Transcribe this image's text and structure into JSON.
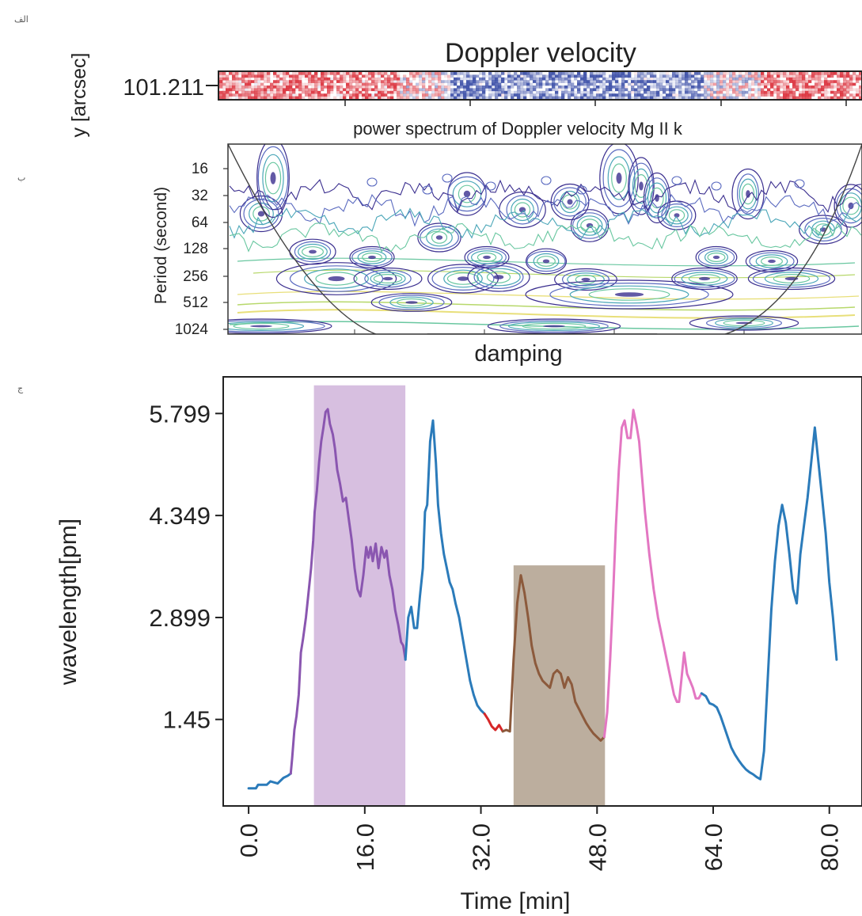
{
  "panels": {
    "a": {
      "letter": "الف",
      "title": "Doppler velocity",
      "ylabel": "y [arcsec]",
      "ytick": "101.211"
    },
    "b": {
      "letter": "ب",
      "title": "power spectrum of Doppler velocity Mg II k",
      "ylabel": "Period (second)",
      "yticks": [
        "16",
        "32",
        "64",
        "128",
        "256",
        "512",
        "1024"
      ],
      "caption": "damping",
      "contour_colors": [
        "#3b2f8f",
        "#5b6bc0",
        "#4aa6b8",
        "#69c7a0",
        "#b7d86b",
        "#e8df7a"
      ]
    },
    "c": {
      "letter": "ج"
    }
  },
  "chart_data": [
    {
      "type": "heatmap",
      "title": "Doppler velocity",
      "ylabel": "y [arcsec]",
      "yticks": [
        "101.211"
      ],
      "colors": {
        "positive": "#d8202c",
        "negative": "#2a3fa0"
      }
    },
    {
      "type": "heatmap",
      "title": "power spectrum of Doppler velocity Mg II k",
      "ylabel": "Period (second)",
      "yticks": [
        "16",
        "32",
        "64",
        "128",
        "256",
        "512",
        "1024"
      ],
      "xlabel": "damping"
    },
    {
      "type": "line",
      "xlabel": "Time [min]",
      "ylabel": "wavelength[pm]",
      "xticks": [
        "0.0",
        "16.0",
        "32.0",
        "48.0",
        "64.0",
        "80.0"
      ],
      "yticks": [
        "5.799",
        "4.349",
        "2.899",
        "1.45"
      ],
      "xlim": [
        -3.5,
        84.5
      ],
      "ylim": [
        0.22,
        6.32
      ],
      "grid": false,
      "shaded_regions": [
        {
          "x": [
            9.0,
            21.6
          ],
          "y": [
            0.22,
            6.2
          ],
          "color": "#d7bfe0"
        },
        {
          "x": [
            36.5,
            49.1
          ],
          "y": [
            0.22,
            3.64
          ],
          "color": "#bcae9e"
        }
      ],
      "series": [
        {
          "color": "#2b7bba",
          "x": [
            0.0,
            1.0,
            1.3,
            2.5,
            3.0,
            4.0,
            4.8,
            5.4,
            5.8
          ],
          "y": [
            0.47,
            0.47,
            0.52,
            0.52,
            0.57,
            0.54,
            0.62,
            0.65,
            0.68
          ]
        },
        {
          "color": "#8a56b0",
          "x": [
            5.8,
            6.0,
            6.3,
            6.6,
            6.9,
            7.2,
            7.5,
            7.9,
            8.2,
            8.6,
            8.9,
            9.1,
            9.4,
            9.7,
            10.0,
            10.3,
            10.6,
            10.9,
            11.2,
            11.4,
            11.6,
            11.9,
            12.2,
            12.6,
            13.0,
            13.4,
            13.8,
            14.2,
            14.6,
            15.0,
            15.4,
            15.8,
            16.2,
            16.5,
            16.8,
            17.1,
            17.5,
            17.9,
            18.3,
            18.7,
            19.0,
            19.4,
            19.8,
            20.2,
            20.6,
            21.0,
            21.3,
            21.6
          ],
          "y": [
            0.68,
            0.9,
            1.3,
            1.5,
            1.8,
            2.4,
            2.6,
            2.9,
            3.2,
            3.6,
            4.0,
            4.4,
            4.7,
            5.1,
            5.4,
            5.6,
            5.82,
            5.86,
            5.65,
            5.58,
            5.5,
            5.3,
            5.0,
            4.8,
            4.55,
            4.6,
            4.3,
            4.0,
            3.6,
            3.3,
            3.2,
            3.5,
            3.9,
            3.75,
            3.9,
            3.7,
            3.95,
            3.6,
            3.9,
            3.75,
            3.85,
            3.5,
            3.3,
            3.0,
            2.8,
            2.55,
            2.5,
            2.3
          ]
        },
        {
          "color": "#2b7bba",
          "x": [
            21.6,
            22.0,
            22.4,
            22.8,
            23.2,
            23.6,
            24.0,
            24.3,
            24.6,
            25.0,
            25.4,
            25.8,
            26.1,
            26.5,
            26.9,
            27.3,
            27.7,
            28.1,
            28.5,
            29.0,
            29.5,
            30.0,
            30.5,
            31.0,
            31.5,
            32.0,
            32.5
          ],
          "y": [
            2.3,
            2.9,
            3.05,
            2.75,
            2.75,
            3.2,
            3.6,
            4.4,
            4.5,
            5.4,
            5.7,
            5.1,
            4.5,
            4.1,
            3.8,
            3.6,
            3.4,
            3.3,
            3.1,
            2.9,
            2.6,
            2.3,
            2.0,
            1.8,
            1.65,
            1.58,
            1.53
          ]
        },
        {
          "color": "#d62728",
          "x": [
            32.5,
            33.0,
            33.5,
            34.0,
            34.5,
            35.0
          ],
          "y": [
            1.53,
            1.45,
            1.35,
            1.3,
            1.37,
            1.28
          ]
        },
        {
          "color": "#8c5a3c",
          "x": [
            35.0,
            35.5,
            36.0,
            36.5,
            37.0,
            37.5,
            38.0,
            38.5,
            39.0,
            39.5,
            40.0,
            40.5,
            41.0,
            41.5,
            42.0,
            42.5,
            43.0,
            43.5,
            44.0,
            44.5,
            45.0,
            45.5,
            46.0,
            46.5,
            47.0,
            47.5,
            48.0,
            48.5,
            49.0
          ],
          "y": [
            1.28,
            1.3,
            1.28,
            2.3,
            3.1,
            3.5,
            3.25,
            2.9,
            2.5,
            2.25,
            2.1,
            2.0,
            1.95,
            1.9,
            2.1,
            2.15,
            2.1,
            1.9,
            2.05,
            1.95,
            1.7,
            1.6,
            1.5,
            1.4,
            1.32,
            1.25,
            1.2,
            1.15,
            1.2
          ]
        },
        {
          "color": "#e377c2",
          "x": [
            49.0,
            49.4,
            49.8,
            50.2,
            50.6,
            51.0,
            51.4,
            51.8,
            52.2,
            52.6,
            53.0,
            53.4,
            53.8,
            54.2,
            54.6,
            55.2,
            55.8,
            56.4,
            57.0,
            57.6,
            58.2,
            58.6,
            59.0,
            59.3,
            59.6,
            60.0,
            60.4,
            60.8,
            61.2,
            61.6,
            62.0,
            62.4
          ],
          "y": [
            1.2,
            1.55,
            2.3,
            3.2,
            4.2,
            5.0,
            5.6,
            5.7,
            5.45,
            5.45,
            5.85,
            5.65,
            5.4,
            4.9,
            4.4,
            3.8,
            3.3,
            2.9,
            2.6,
            2.3,
            2.0,
            1.8,
            1.7,
            1.7,
            2.0,
            2.4,
            2.1,
            2.0,
            1.9,
            1.75,
            1.75,
            1.82
          ]
        },
        {
          "color": "#2b7bba",
          "x": [
            62.4,
            63.0,
            63.5,
            64.0,
            64.5,
            65.0,
            65.5,
            66.0,
            66.5,
            67.0,
            67.5,
            68.0,
            68.5,
            69.0,
            69.5,
            70.0,
            70.5,
            71.0,
            71.5,
            72.0,
            72.5,
            73.0,
            73.5,
            74.0,
            74.5,
            75.0,
            75.5,
            76.0,
            76.5,
            77.0,
            77.5,
            78.0,
            78.5,
            79.0,
            79.5,
            80.0,
            80.5,
            81.0
          ],
          "y": [
            1.82,
            1.78,
            1.68,
            1.66,
            1.62,
            1.5,
            1.35,
            1.2,
            1.05,
            0.95,
            0.87,
            0.8,
            0.74,
            0.7,
            0.67,
            0.63,
            0.6,
            1.0,
            2.0,
            3.0,
            3.7,
            4.2,
            4.5,
            4.25,
            3.8,
            3.3,
            3.1,
            3.8,
            4.2,
            4.6,
            5.1,
            5.6,
            5.1,
            4.6,
            4.1,
            3.4,
            2.9,
            2.3
          ]
        }
      ]
    }
  ]
}
